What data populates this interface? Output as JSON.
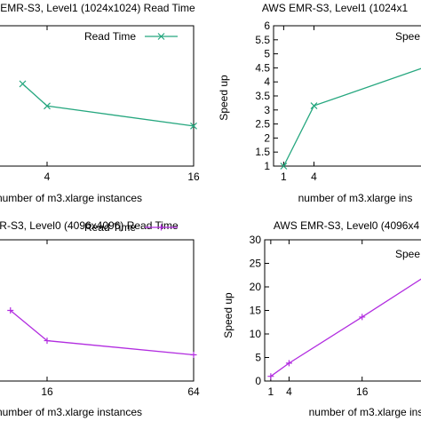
{
  "chart_data": [
    {
      "type": "line",
      "title": "EMR-S3, Level1 (1024x1024) Read Time",
      "xlabel": "number of m3.xlarge instances",
      "ylabel": "",
      "x_tick_labels": [
        "4",
        "16"
      ],
      "x": [
        1,
        2,
        4,
        16
      ],
      "xlim": [
        0,
        16
      ],
      "legend_position": "top-right",
      "series": [
        {
          "name": "Read Time",
          "color": "#26a77f",
          "marker": "x",
          "values": [
            null,
            8.2,
            6.0,
            4.0
          ]
        }
      ],
      "ylim": [
        0,
        14
      ],
      "grid": false
    },
    {
      "type": "line",
      "title": "AWS EMR-S3, Level1 (1024x1",
      "xlabel": "number of m3.xlarge ins",
      "ylabel": "Speed up",
      "y_tick_labels": [
        "1",
        "1.5",
        "2",
        "2.5",
        "3",
        "3.5",
        "4",
        "4.5",
        "5",
        "5.5",
        "6"
      ],
      "x_tick_labels": [
        "1",
        "4"
      ],
      "x": [
        1,
        4,
        16
      ],
      "xlim": [
        0,
        16
      ],
      "ylim": [
        1,
        6
      ],
      "legend_position": "top-right",
      "series": [
        {
          "name": "Spee",
          "color": "#26a77f",
          "marker": "x",
          "values": [
            1,
            3.15,
            4.65
          ]
        }
      ],
      "grid": false
    },
    {
      "type": "line",
      "title": "MR-S3, Level0 (4096x4096) Read Time",
      "xlabel": "number of m3.xlarge instances",
      "ylabel": "",
      "x_tick_labels": [
        "16",
        "64"
      ],
      "x": [
        4,
        16,
        64
      ],
      "xlim": [
        0,
        64
      ],
      "legend_position": "top-right",
      "series": [
        {
          "name": "Read Time",
          "color": "#b22de0",
          "marker": "+",
          "values": [
            7.0,
            4.0,
            2.6
          ]
        }
      ],
      "ylim": [
        0,
        14
      ],
      "grid": false
    },
    {
      "type": "line",
      "title": "AWS EMR-S3, Level0 (4096x4",
      "xlabel": "number of m3.xlarge ins",
      "ylabel": "Speed up",
      "y_tick_labels": [
        "0",
        "5",
        "10",
        "15",
        "20",
        "25",
        "30"
      ],
      "x_tick_labels": [
        "1",
        "4",
        "16"
      ],
      "x": [
        1,
        4,
        16,
        28
      ],
      "xlim": [
        0,
        28
      ],
      "ylim": [
        0,
        30
      ],
      "legend_position": "top-right",
      "series": [
        {
          "name": "Spee",
          "color": "#b22de0",
          "marker": "+",
          "values": [
            1,
            3.8,
            13.6,
            23.6
          ]
        }
      ],
      "grid": false
    }
  ]
}
